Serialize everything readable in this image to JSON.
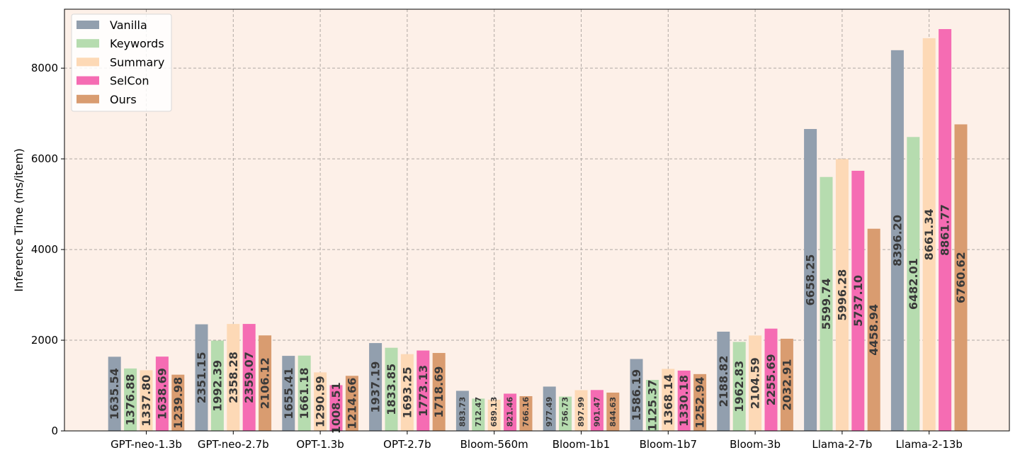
{
  "chart_data": {
    "type": "bar",
    "title": "",
    "xlabel": "",
    "ylabel": "Inference Time (ms/item)",
    "ylim": [
      0,
      9300
    ],
    "yticks": [
      0,
      2000,
      4000,
      6000,
      8000
    ],
    "grid": true,
    "legend_position": "top-left",
    "background": "#fdf0e8",
    "categories": [
      "GPT-neo-1.3b",
      "GPT-neo-2.7b",
      "OPT-1.3b",
      "OPT-2.7b",
      "Bloom-560m",
      "Bloom-1b1",
      "Bloom-1b7",
      "Bloom-3b",
      "Llama-2-7b",
      "Llama-2-13b"
    ],
    "series": [
      {
        "name": "Vanilla",
        "color": "#929fae",
        "values": [
          1635.54,
          2351.15,
          1655.41,
          1937.19,
          883.73,
          977.49,
          1586.19,
          2188.82,
          6658.25,
          8396.2
        ]
      },
      {
        "name": "Keywords",
        "color": "#b6dcaf",
        "values": [
          1376.88,
          1992.39,
          1661.18,
          1833.85,
          712.47,
          756.73,
          1125.37,
          1962.83,
          5599.74,
          6482.01
        ]
      },
      {
        "name": "Summary",
        "color": "#fdd9b6",
        "values": [
          1337.8,
          2358.28,
          1290.99,
          1693.25,
          689.13,
          897.99,
          1368.14,
          2104.59,
          5996.28,
          8661.34
        ]
      },
      {
        "name": "SelCon",
        "color": "#f56cb3",
        "values": [
          1638.69,
          2359.07,
          1008.51,
          1773.13,
          821.46,
          901.47,
          1330.18,
          2255.69,
          5737.1,
          8861.77
        ]
      },
      {
        "name": "Ours",
        "color": "#d99c70",
        "values": [
          1239.98,
          2106.12,
          1214.66,
          1718.69,
          766.16,
          844.63,
          1252.94,
          2032.91,
          4458.94,
          6760.62
        ]
      }
    ],
    "data_labels": [
      [
        "1635.54",
        "2351.15",
        "1655.41",
        "1937.19",
        "883.73",
        "977.49",
        "1586.19",
        "2188.82",
        "6658.25",
        "8396.20"
      ],
      [
        "1376.88",
        "1992.39",
        "1661.18",
        "1833.85",
        "712.47",
        "756.73",
        "1125.37",
        "1962.83",
        "5599.74",
        "6482.01"
      ],
      [
        "1337.80",
        "2358.28",
        "1290.99",
        "1693.25",
        "689.13",
        "897.99",
        "1368.14",
        "2104.59",
        "5996.28",
        "8661.34"
      ],
      [
        "1638.69",
        "2359.07",
        "1008.51",
        "1773.13",
        "821.46",
        "901.47",
        "1330.18",
        "2255.69",
        "5737.10",
        "8861.77"
      ],
      [
        "1239.98",
        "2106.12",
        "1214.66",
        "1718.69",
        "766.16",
        "844.63",
        "1252.94",
        "2032.91",
        "4458.94",
        "6760.62"
      ]
    ]
  }
}
